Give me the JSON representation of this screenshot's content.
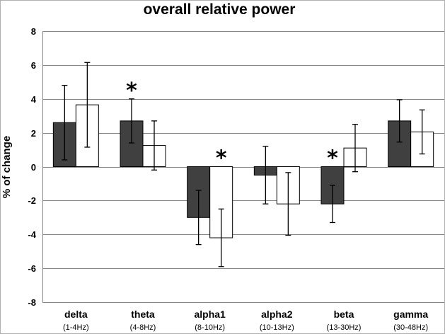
{
  "chart_data": {
    "type": "bar",
    "title": "overall relative power",
    "ylabel": "% of change",
    "xlabel": "",
    "ylim": [
      -8,
      8
    ],
    "yticks": [
      -8,
      -6,
      -4,
      -2,
      0,
      2,
      4,
      6,
      8
    ],
    "grid": true,
    "categories": [
      "delta",
      "theta",
      "alpha1",
      "alpha2",
      "beta",
      "gamma"
    ],
    "category_subtitles": [
      "(1-4Hz)",
      "(4-8Hz)",
      "(8-10Hz)",
      "(10-13Hz)",
      "(13-30Hz)",
      "(30-48Hz)"
    ],
    "series": [
      {
        "color": "#404040",
        "values": [
          2.6,
          2.7,
          -3.0,
          -0.5,
          -2.2,
          2.7
        ],
        "errors": [
          2.2,
          1.3,
          1.6,
          1.7,
          1.1,
          1.25
        ],
        "significant": [
          false,
          true,
          false,
          false,
          true,
          false
        ]
      },
      {
        "color": "#ffffff",
        "values": [
          3.65,
          1.25,
          -4.2,
          -2.2,
          1.1,
          2.05
        ],
        "errors": [
          2.5,
          1.45,
          1.7,
          1.85,
          1.4,
          1.3
        ],
        "significant": [
          false,
          false,
          true,
          false,
          false,
          false
        ]
      }
    ],
    "significance_marker": "*"
  }
}
